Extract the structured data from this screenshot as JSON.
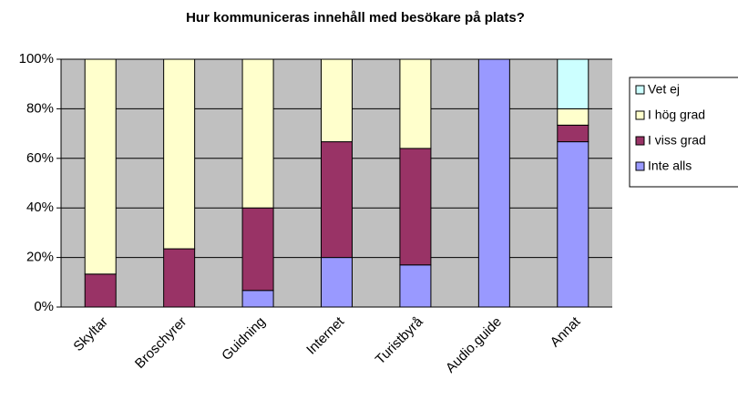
{
  "chart_data": {
    "type": "stacked_bar",
    "title": "Hur kommuniceras innehåll med besökare på plats?",
    "categories": [
      "Skyltar",
      "Broschyrer",
      "Guidning",
      "Internet",
      "Turistbyrå",
      "Audio.guide",
      "Annat"
    ],
    "series": [
      {
        "name": "Inte alls",
        "color": "#9999ff",
        "values": [
          0,
          0,
          6.7,
          20,
          17,
          100,
          66.7
        ]
      },
      {
        "name": "I viss grad",
        "color": "#993366",
        "values": [
          13.3,
          23.5,
          33.3,
          46.7,
          47,
          0,
          6.7
        ]
      },
      {
        "name": "I hög grad",
        "color": "#ffffcc",
        "values": [
          86.7,
          76.5,
          60,
          33.3,
          36,
          0,
          6.6
        ]
      },
      {
        "name": "Vet ej",
        "color": "#ccffff",
        "values": [
          0,
          0,
          0,
          0,
          0,
          0,
          20
        ]
      }
    ],
    "ylim": [
      0,
      100
    ],
    "yticks": [
      {
        "value": 0,
        "label": "0%"
      },
      {
        "value": 20,
        "label": "20%"
      },
      {
        "value": 40,
        "label": "40%"
      },
      {
        "value": 60,
        "label": "60%"
      },
      {
        "value": 80,
        "label": "80%"
      },
      {
        "value": 100,
        "label": "100%"
      }
    ],
    "grid": true,
    "legend": "right"
  }
}
